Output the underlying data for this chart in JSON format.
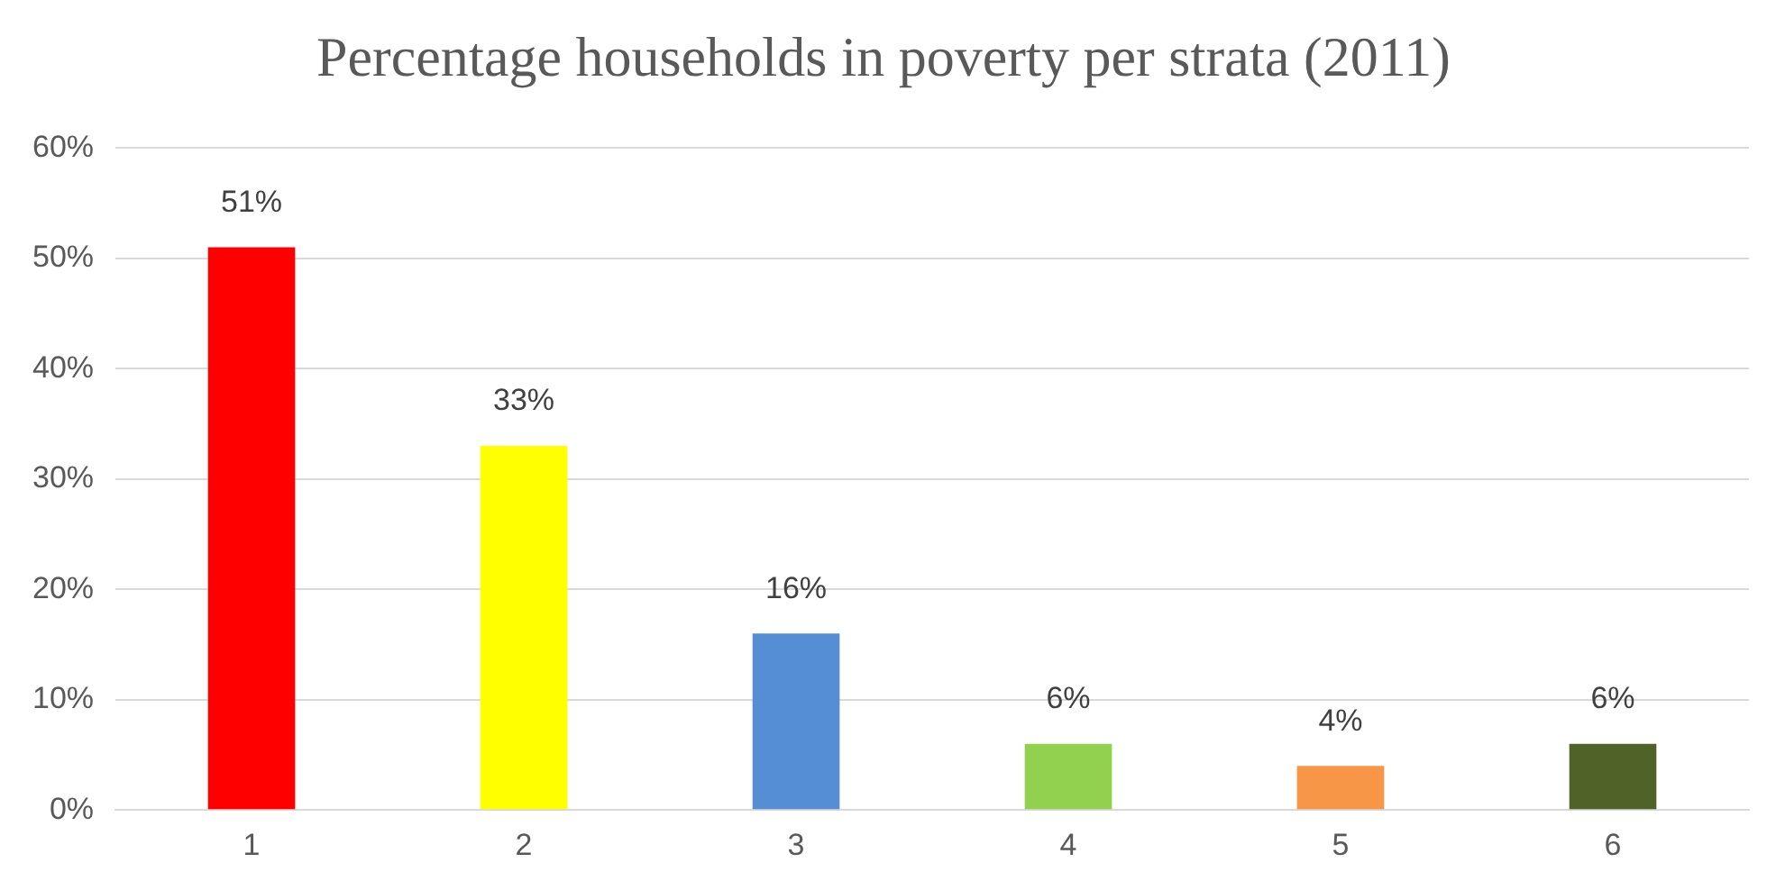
{
  "chart_data": {
    "type": "bar",
    "title": "Percentage households in poverty per strata (2011)",
    "categories": [
      "1",
      "2",
      "3",
      "4",
      "5",
      "6"
    ],
    "values": [
      51,
      33,
      16,
      6,
      4,
      6
    ],
    "colors": [
      "#ff0000",
      "#ffff00",
      "#558ed5",
      "#92d050",
      "#f79646",
      "#4f6228"
    ],
    "value_labels": [
      "51%",
      "33%",
      "16%",
      "6%",
      "4%",
      "6%"
    ],
    "ylim": [
      0,
      60
    ],
    "yticks": [
      {
        "value": 0,
        "label": "0%"
      },
      {
        "value": 10,
        "label": "10%"
      },
      {
        "value": 20,
        "label": "20%"
      },
      {
        "value": 30,
        "label": "30%"
      },
      {
        "value": 40,
        "label": "40%"
      },
      {
        "value": 50,
        "label": "50%"
      },
      {
        "value": 60,
        "label": "60%"
      }
    ],
    "grid": "y",
    "legend": false
  }
}
